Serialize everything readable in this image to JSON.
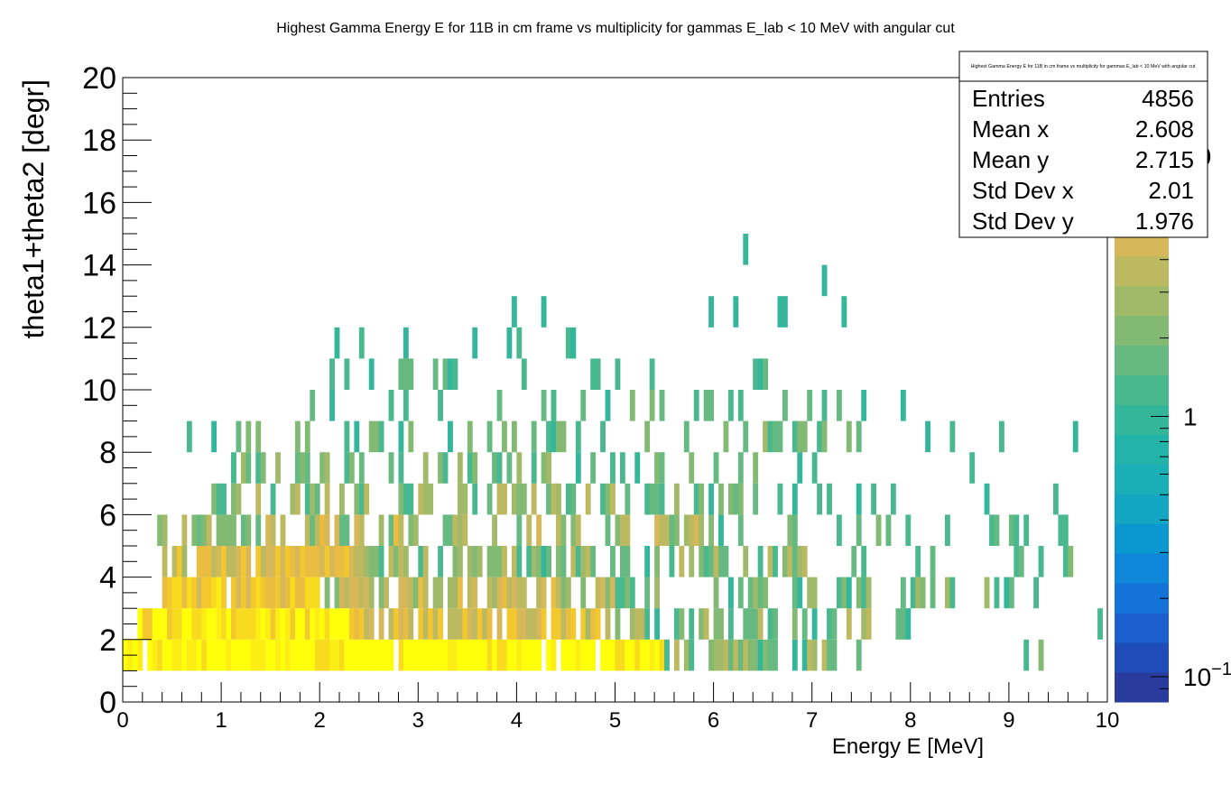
{
  "chart_data": {
    "type": "heatmap",
    "title": "Highest Gamma Energy E for 11B in cm frame vs multiplicity for gammas E_lab < 10 MeV with angular cut",
    "xlabel": "Energy E [MeV]",
    "ylabel": "theta1+theta2 [degr]",
    "xlim": [
      0,
      10
    ],
    "ylim": [
      0,
      20
    ],
    "x_ticks": [
      "0",
      "1",
      "2",
      "3",
      "4",
      "5",
      "6",
      "7",
      "8",
      "9",
      "10"
    ],
    "y_ticks": [
      "0",
      "2",
      "4",
      "6",
      "8",
      "10",
      "12",
      "14",
      "16",
      "18",
      "20"
    ],
    "colorbar": {
      "scale": "log",
      "range": [
        0.08,
        20
      ],
      "tick_labels": [
        {
          "value": 0.1,
          "base": "10",
          "exp": "−1"
        },
        {
          "value": 1,
          "base": "1",
          "exp": ""
        },
        {
          "value": 10,
          "base": "10",
          "exp": ""
        }
      ]
    },
    "bin_width_x": 0.05,
    "bin_height_y": 1,
    "rows": [
      {
        "y": 1,
        "x_from": 0.0,
        "x_to": 5.5,
        "level_lo": 10,
        "level_hi": 40,
        "density": 0.95
      },
      {
        "y": 1,
        "x_from": 5.5,
        "x_to": 7.5,
        "level_lo": 1,
        "level_hi": 4,
        "density": 0.7
      },
      {
        "y": 1,
        "x_from": 7.5,
        "x_to": 10,
        "level_lo": 1,
        "level_hi": 2,
        "density": 0.06
      },
      {
        "y": 2,
        "x_from": 0.15,
        "x_to": 2.3,
        "level_lo": 8,
        "level_hi": 20,
        "density": 0.98
      },
      {
        "y": 2,
        "x_from": 2.3,
        "x_to": 5.0,
        "level_lo": 3,
        "level_hi": 9,
        "density": 0.85
      },
      {
        "y": 2,
        "x_from": 5.0,
        "x_to": 8.0,
        "level_lo": 1,
        "level_hi": 4,
        "density": 0.45
      },
      {
        "y": 2,
        "x_from": 8.0,
        "x_to": 10,
        "level_lo": 1,
        "level_hi": 1.5,
        "density": 0.03
      },
      {
        "y": 3,
        "x_from": 0.4,
        "x_to": 2.0,
        "level_lo": 5,
        "level_hi": 12,
        "density": 0.95
      },
      {
        "y": 3,
        "x_from": 2.0,
        "x_to": 5.0,
        "level_lo": 2,
        "level_hi": 6,
        "density": 0.75
      },
      {
        "y": 3,
        "x_from": 5.0,
        "x_to": 9.3,
        "level_lo": 1,
        "level_hi": 3,
        "density": 0.4
      },
      {
        "y": 4,
        "x_from": 0.4,
        "x_to": 2.5,
        "level_lo": 3,
        "level_hi": 9,
        "density": 0.9
      },
      {
        "y": 4,
        "x_from": 2.5,
        "x_to": 7.0,
        "level_lo": 1,
        "level_hi": 4,
        "density": 0.55
      },
      {
        "y": 4,
        "x_from": 7.0,
        "x_to": 10,
        "level_lo": 1,
        "level_hi": 2,
        "density": 0.12
      },
      {
        "y": 5,
        "x_from": 0.35,
        "x_to": 6.0,
        "level_lo": 1.5,
        "level_hi": 6,
        "density": 0.6
      },
      {
        "y": 5,
        "x_from": 6.0,
        "x_to": 10,
        "level_lo": 1,
        "level_hi": 2,
        "density": 0.18
      },
      {
        "y": 6,
        "x_from": 0.8,
        "x_to": 6.5,
        "level_lo": 1,
        "level_hi": 4,
        "density": 0.45
      },
      {
        "y": 6,
        "x_from": 6.5,
        "x_to": 9.5,
        "level_lo": 1,
        "level_hi": 1.5,
        "density": 0.12
      },
      {
        "y": 7,
        "x_from": 1.0,
        "x_to": 6.8,
        "level_lo": 1,
        "level_hi": 3,
        "density": 0.32
      },
      {
        "y": 7,
        "x_from": 6.8,
        "x_to": 10,
        "level_lo": 1,
        "level_hi": 1.3,
        "density": 0.06
      },
      {
        "y": 8,
        "x_from": 0.6,
        "x_to": 7.5,
        "level_lo": 1,
        "level_hi": 2.5,
        "density": 0.25
      },
      {
        "y": 8,
        "x_from": 7.5,
        "x_to": 10,
        "level_lo": 1,
        "level_hi": 1.2,
        "density": 0.08
      },
      {
        "y": 9,
        "x_from": 1.8,
        "x_to": 7.5,
        "level_lo": 1,
        "level_hi": 2,
        "density": 0.2
      },
      {
        "y": 9,
        "x_from": 7.5,
        "x_to": 10,
        "level_lo": 1,
        "level_hi": 1.1,
        "density": 0.03
      },
      {
        "y": 10,
        "x_from": 1.3,
        "x_to": 6.7,
        "level_lo": 1,
        "level_hi": 1.8,
        "density": 0.14
      },
      {
        "y": 11,
        "x_from": 2.1,
        "x_to": 6.5,
        "level_lo": 1,
        "level_hi": 1.2,
        "density": 0.06
      },
      {
        "y": 12,
        "x_from": 3.9,
        "x_to": 8.2,
        "level_lo": 1,
        "level_hi": 1,
        "density": 0.04
      },
      {
        "y": 13,
        "x_from": 7.1,
        "x_to": 7.15,
        "level_lo": 1,
        "level_hi": 1,
        "density": 1.0
      },
      {
        "y": 14,
        "x_from": 6.3,
        "x_to": 6.35,
        "level_lo": 1,
        "level_hi": 1,
        "density": 1.0
      }
    ],
    "stats_box": {
      "title": "Highest Gamma Energy E for 11B in cm frame vs multiplicity for gammas E_lab < 10 MeV with angular cut",
      "entries": [
        {
          "label": "Entries",
          "value": "4856"
        },
        {
          "label": "Mean x",
          "value": "2.608"
        },
        {
          "label": "Mean y",
          "value": "2.715"
        },
        {
          "label": "Std Dev x",
          "value": "2.01"
        },
        {
          "label": "Std Dev y",
          "value": "1.976"
        }
      ]
    },
    "palette": [
      "#2a3b9e",
      "#1f4cb8",
      "#1a5fcd",
      "#1473d8",
      "#0f86d8",
      "#0b98d0",
      "#12a6c3",
      "#1aaeb6",
      "#22b4a8",
      "#33b69a",
      "#4ab88e",
      "#65b981",
      "#82ba74",
      "#a0ba69",
      "#bdb961",
      "#d6b75a",
      "#e9bc42",
      "#f3c82e",
      "#f8da1e",
      "#fcee14",
      "#ffff0a"
    ]
  }
}
